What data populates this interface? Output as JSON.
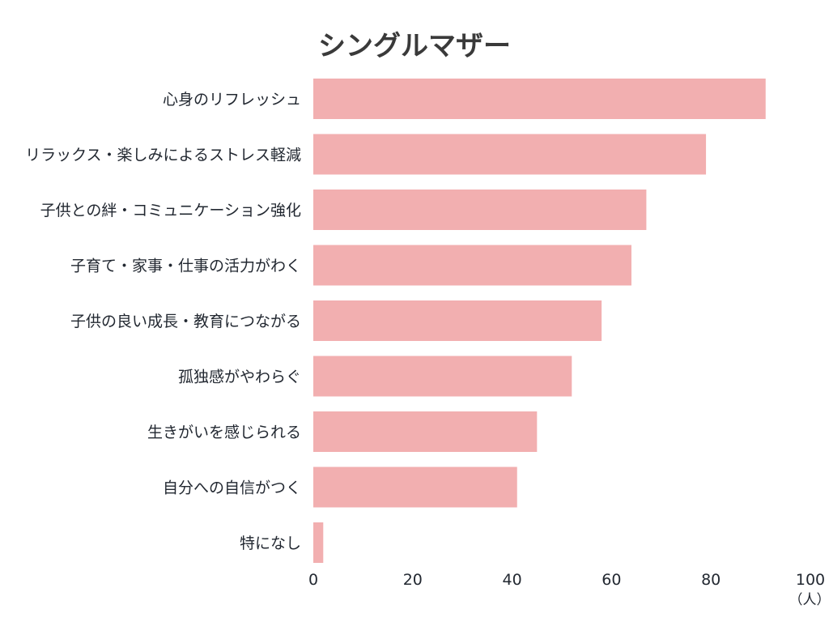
{
  "chart_data": {
    "type": "bar",
    "orientation": "horizontal",
    "title": "シングルマザー",
    "unit": "（人）",
    "categories": [
      "心身のリフレッシュ",
      "リラックス・楽しみによるストレス軽減",
      "子供との絆・コミュニケーション強化",
      "子育て・家事・仕事の活力がわく",
      "子供の良い成長・教育につながる",
      "孤独感がやわらぐ",
      "生きがいを感じられる",
      "自分への自信がつく",
      "特になし"
    ],
    "values": [
      91,
      79,
      67,
      64,
      58,
      52,
      45,
      41,
      2
    ],
    "xlim": [
      0,
      100
    ],
    "xticks": [
      "0",
      "20",
      "40",
      "60",
      "80",
      "100"
    ],
    "grid": false,
    "colors": {
      "bar": "#f2afb0",
      "text": "#222831",
      "title": "#3a3a3a"
    }
  }
}
